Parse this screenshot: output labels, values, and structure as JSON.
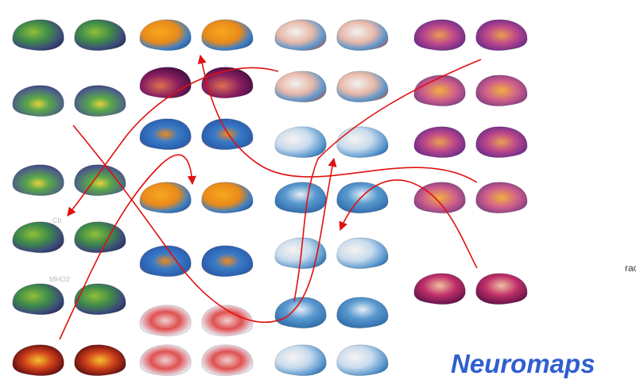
{
  "title": "Neuromaps",
  "labels": [
    "Cb",
    "MHO2"
  ],
  "edge_text": "rac"
}
